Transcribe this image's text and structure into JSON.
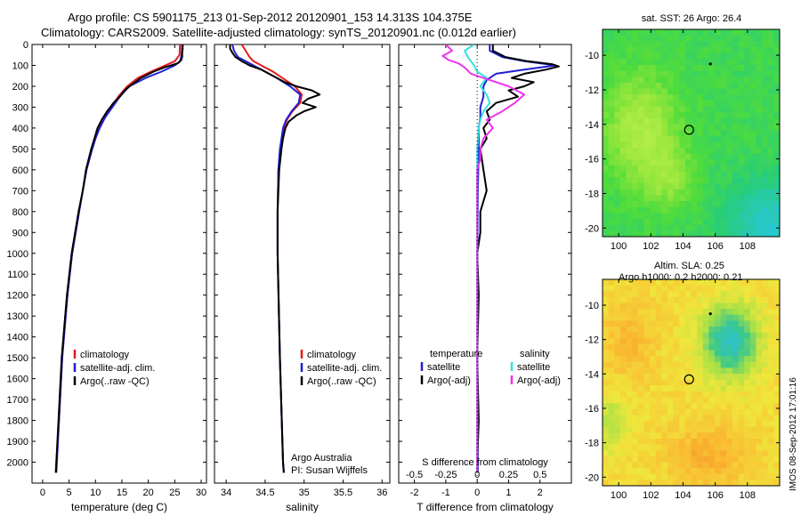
{
  "header": {
    "line1": "Argo profile: CS 5901175_213 01-Sep-2012 20120901_153 14.313S 104.375E",
    "line2": "Climatology: CARS2009. Satellite-adjusted climatology: synTS_20120901.nc (0.012d earlier)"
  },
  "side_stamp": "IMOS 08-Sep-2012 17:01:16",
  "colors": {
    "climatology": "#e41a1c",
    "satellite": "#1f1fd1",
    "argo": "#000000",
    "sal_satellite": "#33e0e0",
    "sal_argo": "#ee33ee"
  },
  "chart_data": [
    {
      "type": "line",
      "id": "temp",
      "xlabel": "temperature (deg C)",
      "ylabel": "",
      "xlim": [
        -2,
        31
      ],
      "ylim": [
        2100,
        0
      ],
      "xticks": [
        0,
        5,
        10,
        15,
        20,
        25,
        30
      ],
      "yticks": [
        0,
        100,
        200,
        300,
        400,
        500,
        600,
        700,
        800,
        900,
        1000,
        1100,
        1200,
        1300,
        1400,
        1500,
        1600,
        1700,
        1800,
        1900,
        2000
      ],
      "legend": [
        "climatology",
        "satellite-adj. clim.",
        "Argo(..raw -QC)"
      ],
      "legend_colors": [
        "#e41a1c",
        "#1f1fd1",
        "#000000"
      ],
      "legend_position": "lower-left",
      "series": [
        {
          "name": "climatology",
          "color": "#e41a1c",
          "depth": [
            0,
            50,
            80,
            100,
            130,
            160,
            200,
            250,
            300,
            350,
            400,
            450,
            500,
            600,
            700,
            800,
            1000,
            1200,
            1500,
            1800,
            2000,
            2050
          ],
          "values": [
            26.0,
            25.9,
            25.0,
            23.2,
            20.5,
            18.0,
            16.0,
            14.3,
            13.0,
            11.7,
            10.7,
            10.0,
            9.3,
            8.3,
            7.6,
            6.9,
            5.6,
            4.7,
            3.7,
            3.1,
            2.6,
            2.5
          ]
        },
        {
          "name": "satellite-adj. clim.",
          "color": "#1f1fd1",
          "depth": [
            0,
            50,
            80,
            100,
            130,
            160,
            200,
            250,
            300,
            350,
            400,
            450,
            500,
            600,
            700,
            800,
            1000,
            1200,
            1500,
            1800,
            2000,
            2050
          ],
          "values": [
            26.4,
            26.3,
            26.0,
            25.0,
            22.5,
            19.5,
            16.4,
            14.6,
            13.2,
            11.8,
            10.8,
            10.0,
            9.4,
            8.3,
            7.6,
            6.9,
            5.6,
            4.7,
            3.7,
            3.1,
            2.7,
            2.6
          ]
        },
        {
          "name": "Argo(..raw -QC)",
          "color": "#000000",
          "depth": [
            0,
            20,
            40,
            60,
            75,
            90,
            110,
            130,
            160,
            190,
            220,
            250,
            280,
            320,
            360,
            400,
            450,
            500,
            600,
            700,
            800,
            1000,
            1200,
            1500,
            1800,
            2000,
            2050
          ],
          "values": [
            26.5,
            26.5,
            26.4,
            26.4,
            26.2,
            25.6,
            23.0,
            21.0,
            18.6,
            17.0,
            15.5,
            14.6,
            13.4,
            12.2,
            11.2,
            10.4,
            9.8,
            9.2,
            8.2,
            7.6,
            6.8,
            5.5,
            4.6,
            3.6,
            3.0,
            2.6,
            2.5
          ]
        }
      ]
    },
    {
      "type": "line",
      "id": "sal",
      "xlabel": "salinity",
      "ylabel": "",
      "xlim": [
        33.85,
        36.1
      ],
      "ylim": [
        2100,
        0
      ],
      "xticks": [
        34,
        34.5,
        35,
        35.5,
        36
      ],
      "legend": [
        "climatology",
        "satellite-adj. clim.",
        "Argo(..raw -QC)"
      ],
      "legend_colors": [
        "#e41a1c",
        "#1f1fd1",
        "#000000"
      ],
      "legend_position": "lower-right",
      "annotation": [
        "Argo Australia",
        "PI: Susan Wijffels"
      ],
      "series": [
        {
          "name": "climatology",
          "color": "#e41a1c",
          "depth": [
            0,
            30,
            60,
            80,
            100,
            130,
            160,
            200,
            240,
            280,
            320,
            360,
            400,
            450,
            500,
            600,
            800,
            1000,
            1500,
            2000,
            2050
          ],
          "values": [
            34.2,
            34.25,
            34.3,
            34.35,
            34.45,
            34.6,
            34.72,
            34.88,
            34.97,
            34.95,
            34.85,
            34.78,
            34.74,
            34.72,
            34.7,
            34.67,
            34.66,
            34.66,
            34.69,
            34.73,
            34.74
          ]
        },
        {
          "name": "satellite-adj. clim.",
          "color": "#1f1fd1",
          "depth": [
            0,
            30,
            60,
            80,
            100,
            130,
            160,
            200,
            240,
            280,
            320,
            360,
            400,
            450,
            500,
            600,
            800,
            1000,
            1500,
            2000,
            2050
          ],
          "values": [
            34.08,
            34.1,
            34.15,
            34.25,
            34.35,
            34.5,
            34.65,
            34.82,
            34.95,
            34.93,
            34.84,
            34.77,
            34.73,
            34.71,
            34.69,
            34.67,
            34.66,
            34.66,
            34.69,
            34.73,
            34.74
          ]
        },
        {
          "name": "Argo(..raw -QC)",
          "color": "#000000",
          "depth": [
            0,
            20,
            40,
            60,
            80,
            100,
            120,
            150,
            180,
            200,
            220,
            240,
            260,
            280,
            300,
            320,
            340,
            370,
            400,
            450,
            500,
            600,
            800,
            1000,
            1500,
            2000,
            2050
          ],
          "values": [
            34.05,
            34.05,
            34.08,
            34.12,
            34.2,
            34.3,
            34.45,
            34.6,
            34.75,
            34.9,
            35.1,
            35.2,
            35.05,
            34.98,
            35.15,
            35.0,
            34.9,
            34.8,
            34.76,
            34.73,
            34.71,
            34.68,
            34.66,
            34.66,
            34.69,
            34.73,
            34.74
          ]
        }
      ]
    },
    {
      "type": "line",
      "id": "diff",
      "xlabel": "T difference from climatology",
      "top_label": "S difference from climatology",
      "xlim": [
        -2.5,
        3.0
      ],
      "ylim": [
        2100,
        0
      ],
      "xticks": [
        -2,
        -1,
        0,
        1,
        2
      ],
      "top_ticks": [
        "-0.5",
        "-0.25",
        "0",
        "0.25",
        "0.5"
      ],
      "top_tick_positions": [
        -2,
        -1,
        0,
        1,
        2
      ],
      "legend_temperature": {
        "title": "temperature",
        "items": [
          "satellite",
          "Argo(-adj)"
        ],
        "colors": [
          "#1f1fd1",
          "#000000"
        ]
      },
      "legend_salinity": {
        "title": "salinity",
        "items": [
          "satellite",
          "Argo(-adj)"
        ],
        "colors": [
          "#33e0e0",
          "#ee33ee"
        ]
      },
      "series": [
        {
          "name": "temperature satellite",
          "color": "#1f1fd1",
          "depth": [
            0,
            30,
            60,
            80,
            100,
            120,
            140,
            170,
            200,
            250,
            300,
            350,
            400,
            500,
            700,
            1000,
            1500,
            2000,
            2050
          ],
          "values": [
            0.4,
            0.4,
            0.8,
            1.5,
            2.5,
            1.5,
            0.6,
            0.3,
            0.2,
            0.2,
            0.1,
            0.1,
            0.05,
            0.05,
            0.02,
            0.01,
            0.01,
            0.02,
            0.02
          ]
        },
        {
          "name": "temperature Argo(-adj)",
          "color": "#000000",
          "depth": [
            0,
            30,
            60,
            80,
            95,
            105,
            120,
            140,
            160,
            180,
            200,
            220,
            250,
            280,
            320,
            360,
            400,
            450,
            500,
            600,
            700,
            800,
            900,
            1000,
            1200,
            1500,
            1800,
            2000,
            2050
          ],
          "values": [
            0.5,
            0.5,
            0.9,
            1.6,
            2.4,
            2.6,
            2.2,
            1.5,
            1.1,
            1.8,
            1.5,
            1.0,
            1.3,
            0.6,
            0.3,
            0.4,
            0.2,
            0.3,
            0.1,
            0.2,
            0.3,
            0.1,
            0.1,
            0.0,
            0.05,
            0.0,
            0.05,
            0.0,
            0.0
          ]
        },
        {
          "name": "salinity satellite",
          "color": "#33e0e0",
          "depth": [
            0,
            30,
            60,
            80,
            100,
            130,
            160,
            200,
            240,
            280,
            320,
            360,
            400,
            500,
            600,
            800,
            1000,
            1500,
            2000,
            2050
          ],
          "values": [
            -0.1,
            -0.4,
            -0.3,
            -0.2,
            -0.1,
            0.0,
            0.3,
            0.1,
            0.3,
            0.4,
            0.2,
            0.1,
            0.05,
            0.0,
            0.0,
            0.0,
            0.0,
            0.0,
            0.0,
            0.0
          ]
        },
        {
          "name": "salinity Argo(-adj)",
          "color": "#ee33ee",
          "depth": [
            0,
            30,
            55,
            75,
            90,
            110,
            140,
            170,
            200,
            240,
            280,
            320,
            360,
            400,
            450,
            500,
            550,
            600,
            700,
            800,
            1000,
            1500,
            2000,
            2050
          ],
          "values": [
            -1.0,
            -0.8,
            -1.1,
            -0.9,
            -0.6,
            -0.4,
            -0.2,
            0.4,
            1.0,
            1.5,
            1.2,
            0.8,
            0.3,
            0.5,
            0.2,
            0.1,
            0.1,
            0.0,
            0.0,
            0.0,
            0.0,
            0.0,
            0.0,
            0.0
          ]
        }
      ]
    },
    {
      "type": "heatmap",
      "id": "sst",
      "title": "sat. SST: 26 Argo: 26.4",
      "xlim": [
        99,
        110
      ],
      "ylim": [
        -20.5,
        -8.5
      ],
      "xticks": [
        100,
        102,
        104,
        106,
        108
      ],
      "yticks": [
        -10,
        -12,
        -14,
        -16,
        -18,
        -20
      ],
      "argo_position": [
        104.375,
        -14.313
      ],
      "prior_position": [
        105.7,
        -10.5
      ]
    },
    {
      "type": "heatmap",
      "id": "sla",
      "title_lines": [
        "Altim. SLA: 0.25",
        "Argo h1000: 0.2 h2000: 0.21"
      ],
      "xlim": [
        99,
        110
      ],
      "ylim": [
        -20.5,
        -8.5
      ],
      "xticks": [
        100,
        102,
        104,
        106,
        108
      ],
      "yticks": [
        -10,
        -12,
        -14,
        -16,
        -18,
        -20
      ],
      "argo_position": [
        104.375,
        -14.313
      ],
      "prior_position": [
        105.7,
        -10.5
      ]
    }
  ]
}
